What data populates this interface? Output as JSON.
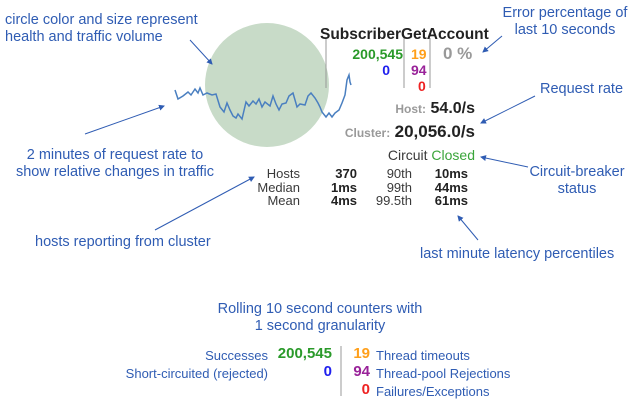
{
  "annotations": {
    "circle": "circle color and size represent health and traffic volume",
    "error": "Error percentage of last 10 seconds",
    "request_rate": "Request rate",
    "sparkline": "2 minutes of request rate to show relative changes in traffic",
    "circuit": "Circuit-breaker status",
    "hosts": "hosts reporting from cluster",
    "latency": "last minute latency percentiles",
    "rolling": "Rolling 10 second counters with 1 second granularity"
  },
  "command": {
    "name": "SubscriberGetAccount",
    "success": "200,545",
    "short_circuited": "0",
    "timeouts": "19",
    "rejections": "94",
    "failures": "0",
    "error_pct": "0 %",
    "host_label": "Host:",
    "host_rate": "54.0/s",
    "cluster_label": "Cluster:",
    "cluster_rate": "20,056.0/s",
    "circuit_label": "Circuit",
    "circuit_status": "Closed",
    "stats": [
      {
        "label": "Hosts",
        "value": "370",
        "pct": "90th",
        "lat": "10ms"
      },
      {
        "label": "Median",
        "value": "1ms",
        "pct": "99th",
        "lat": "44ms"
      },
      {
        "label": "Mean",
        "value": "4ms",
        "pct": "99.5th",
        "lat": "61ms"
      }
    ]
  },
  "legend": {
    "successes": "Successes",
    "short_circuited": "Short-circuited (rejected)",
    "timeouts": "Thread timeouts",
    "rejections": "Thread-pool Rejections",
    "failures": "Failures/Exceptions"
  },
  "colors": {
    "success": "#2a9a2a",
    "short": "#2020ee",
    "timeout": "#ff9f1a",
    "reject": "#992299",
    "failure": "#ee2222",
    "circle": "#c8dbc8",
    "annotation": "#2f5cb3"
  }
}
